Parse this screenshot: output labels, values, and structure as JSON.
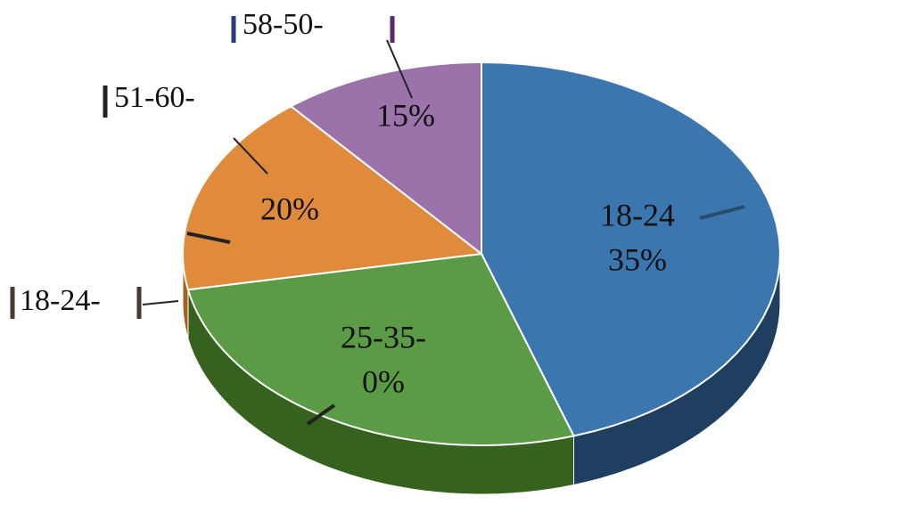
{
  "chart_data": {
    "type": "pie3d",
    "values": [
      45,
      27,
      17,
      11
    ],
    "colors": [
      "#3b77ae",
      "#5b9b46",
      "#e08b3b",
      "#9b72a9"
    ],
    "side_colors": [
      "#1e3f5f",
      "#36611f",
      "#a8601f",
      "#6a4a78"
    ],
    "annotations": [
      "18-24",
      "35%",
      "25-35-",
      "0%",
      "20%",
      "15%",
      "58-50-",
      "51-60-",
      "18-24-"
    ]
  }
}
